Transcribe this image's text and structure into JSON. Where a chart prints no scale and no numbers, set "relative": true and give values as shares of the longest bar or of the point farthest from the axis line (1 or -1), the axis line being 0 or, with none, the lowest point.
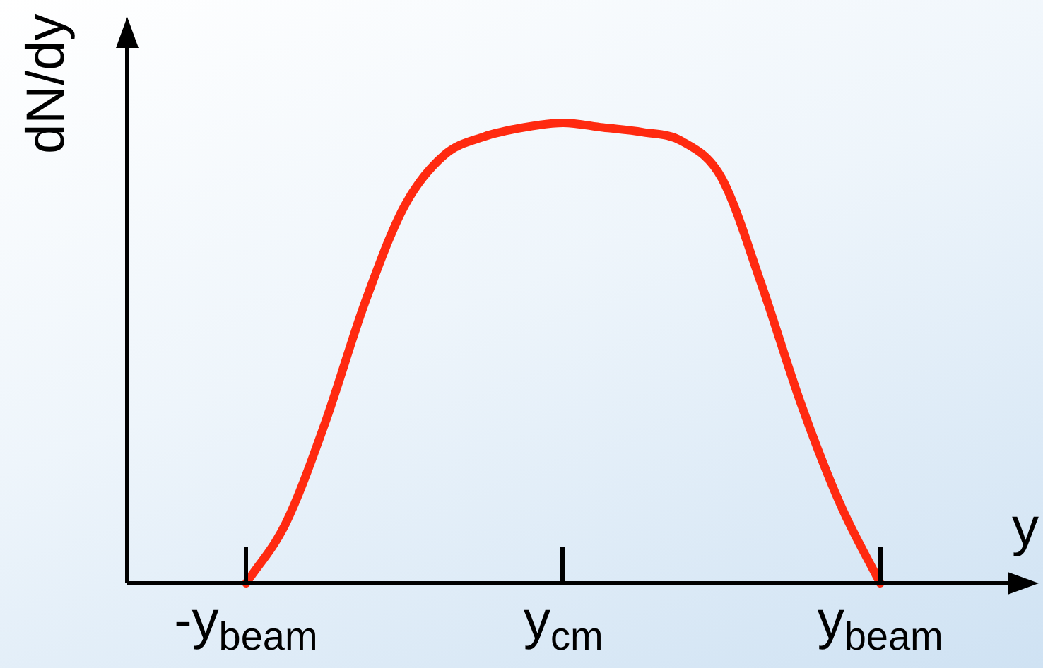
{
  "chart_data": {
    "type": "line",
    "relative": true,
    "xlabel": "y",
    "ylabel": "dN/dy",
    "color": "#ff2a10",
    "marker": "none",
    "categories": [
      null,
      null,
      null,
      "-y$_{beam}$",
      null,
      null,
      null,
      null,
      null,
      null,
      null,
      "y$_{cm}$",
      null,
      null,
      null,
      null,
      null,
      null,
      null,
      "y$_{beam}$",
      null,
      null,
      null,
      null
    ],
    "values": [
      null,
      null,
      null,
      0,
      0.13,
      0.35,
      0.61,
      0.82,
      0.93,
      0.97,
      0.99,
      1,
      0.99,
      0.98,
      0.96,
      0.88,
      0.65,
      0.39,
      0.17,
      0,
      null,
      null,
      null,
      null
    ]
  }
}
